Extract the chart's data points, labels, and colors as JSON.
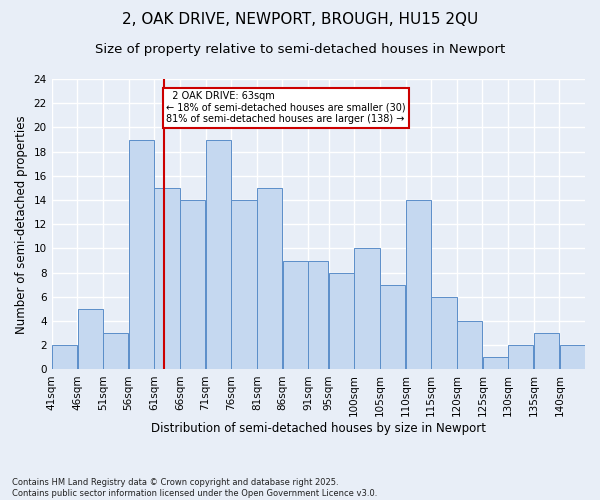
{
  "title1": "2, OAK DRIVE, NEWPORT, BROUGH, HU15 2QU",
  "title2": "Size of property relative to semi-detached houses in Newport",
  "xlabel": "Distribution of semi-detached houses by size in Newport",
  "ylabel": "Number of semi-detached properties",
  "footnote": "Contains HM Land Registry data © Crown copyright and database right 2025.\nContains public sector information licensed under the Open Government Licence v3.0.",
  "bin_labels": [
    "41sqm",
    "46sqm",
    "51sqm",
    "56sqm",
    "61sqm",
    "66sqm",
    "71sqm",
    "76sqm",
    "81sqm",
    "86sqm",
    "91sqm",
    "95sqm",
    "100sqm",
    "105sqm",
    "110sqm",
    "115sqm",
    "120sqm",
    "125sqm",
    "130sqm",
    "135sqm",
    "140sqm"
  ],
  "bin_edges": [
    41,
    46,
    51,
    56,
    61,
    66,
    71,
    76,
    81,
    86,
    91,
    95,
    100,
    105,
    110,
    115,
    120,
    125,
    130,
    135,
    140,
    145
  ],
  "bar_heights": [
    2,
    5,
    3,
    19,
    15,
    14,
    19,
    14,
    15,
    9,
    9,
    8,
    10,
    7,
    14,
    6,
    4,
    1,
    2,
    3,
    2
  ],
  "bar_color": "#c5d8f0",
  "bar_edge_color": "#5b8ec9",
  "property_size": 63,
  "property_label": "2 OAK DRIVE: 63sqm",
  "smaller_pct": 18,
  "smaller_count": 30,
  "larger_pct": 81,
  "larger_count": 138,
  "vline_color": "#cc0000",
  "annotation_box_color": "#cc0000",
  "ylim": [
    0,
    24
  ],
  "yticks": [
    0,
    2,
    4,
    6,
    8,
    10,
    12,
    14,
    16,
    18,
    20,
    22,
    24
  ],
  "bg_color": "#e8eef7",
  "grid_color": "#ffffff",
  "title_fontsize": 11,
  "subtitle_fontsize": 9.5,
  "axis_fontsize": 8.5,
  "tick_fontsize": 7.5,
  "footnote_fontsize": 6.0
}
